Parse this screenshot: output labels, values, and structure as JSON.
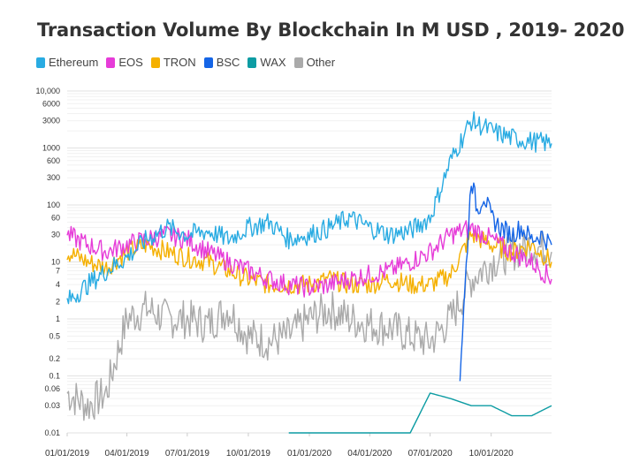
{
  "title": "Transaction Volume By Blockchain In M USD , 2019- 2020",
  "legend": [
    {
      "name": "Ethereum",
      "color": "#29abe2"
    },
    {
      "name": "EOS",
      "color": "#e63cd8"
    },
    {
      "name": "TRON",
      "color": "#f5b000"
    },
    {
      "name": "BSC",
      "color": "#1565e6"
    },
    {
      "name": "WAX",
      "color": "#0d9ca3"
    },
    {
      "name": "Other",
      "color": "#aaaaaa"
    }
  ],
  "chart_data": {
    "type": "line",
    "title": "Transaction Volume By Blockchain In M USD , 2019- 2020",
    "xlabel": "",
    "ylabel": "",
    "yscale": "log",
    "ylim": [
      0.01,
      10000
    ],
    "y_ticks": [
      {
        "value": 0.01,
        "label": "0.01"
      },
      {
        "value": 0.03,
        "label": "0.03"
      },
      {
        "value": 0.06,
        "label": "0.06"
      },
      {
        "value": 0.1,
        "label": "0.1"
      },
      {
        "value": 0.2,
        "label": "0.2"
      },
      {
        "value": 0.5,
        "label": "0.5"
      },
      {
        "value": 1,
        "label": "1"
      },
      {
        "value": 2,
        "label": "2"
      },
      {
        "value": 4,
        "label": "4"
      },
      {
        "value": 7,
        "label": "7"
      },
      {
        "value": 10,
        "label": "10"
      },
      {
        "value": 30,
        "label": "30"
      },
      {
        "value": 60,
        "label": "60"
      },
      {
        "value": 100,
        "label": "100"
      },
      {
        "value": 300,
        "label": "300"
      },
      {
        "value": 600,
        "label": "600"
      },
      {
        "value": 1000,
        "label": "1000"
      },
      {
        "value": 3000,
        "label": "3000"
      },
      {
        "value": 6000,
        "label": "6000"
      },
      {
        "value": 10000,
        "label": "10,000"
      }
    ],
    "x_ticks": [
      "01/01/2019",
      "04/01/2019",
      "07/01/2019",
      "10/01/2019",
      "01/01/2020",
      "04/01/2020",
      "07/01/2020",
      "10/01/2020"
    ],
    "x_range": [
      "2019-01-01",
      "2020-12-31"
    ],
    "grid": true,
    "legend_position": "top-left",
    "series": [
      {
        "name": "Ethereum",
        "color": "#29abe2",
        "x": [
          "2019-01-01",
          "2019-02-01",
          "2019-03-01",
          "2019-04-01",
          "2019-05-01",
          "2019-06-01",
          "2019-07-01",
          "2019-08-01",
          "2019-09-01",
          "2019-10-01",
          "2019-11-01",
          "2019-12-01",
          "2020-01-01",
          "2020-02-01",
          "2020-03-01",
          "2020-04-01",
          "2020-05-01",
          "2020-06-01",
          "2020-07-01",
          "2020-08-01",
          "2020-09-01",
          "2020-10-01",
          "2020-11-01",
          "2020-12-01",
          "2020-12-31"
        ],
        "values": [
          2,
          4,
          7,
          12,
          25,
          40,
          30,
          35,
          25,
          40,
          50,
          25,
          30,
          40,
          60,
          40,
          30,
          35,
          60,
          600,
          3000,
          2000,
          1500,
          1300,
          1200
        ]
      },
      {
        "name": "EOS",
        "color": "#e63cd8",
        "x": [
          "2019-01-01",
          "2019-02-01",
          "2019-03-01",
          "2019-04-01",
          "2019-05-01",
          "2019-06-01",
          "2019-07-01",
          "2019-08-01",
          "2019-09-01",
          "2019-10-01",
          "2019-11-01",
          "2019-12-01",
          "2020-01-01",
          "2020-02-01",
          "2020-03-01",
          "2020-04-01",
          "2020-05-01",
          "2020-06-01",
          "2020-07-01",
          "2020-08-01",
          "2020-09-01",
          "2020-10-01",
          "2020-11-01",
          "2020-12-01",
          "2020-12-31"
        ],
        "values": [
          30,
          20,
          15,
          20,
          25,
          30,
          25,
          15,
          10,
          7,
          5,
          4,
          3.5,
          4,
          5,
          6,
          7,
          10,
          15,
          30,
          40,
          25,
          15,
          10,
          5
        ]
      },
      {
        "name": "TRON",
        "color": "#f5b000",
        "x": [
          "2019-01-01",
          "2019-02-01",
          "2019-03-01",
          "2019-04-01",
          "2019-05-01",
          "2019-06-01",
          "2019-07-01",
          "2019-08-01",
          "2019-09-01",
          "2019-10-01",
          "2019-11-01",
          "2019-12-01",
          "2020-01-01",
          "2020-02-01",
          "2020-03-01",
          "2020-04-01",
          "2020-05-01",
          "2020-06-01",
          "2020-07-01",
          "2020-08-01",
          "2020-09-01",
          "2020-10-01",
          "2020-11-01",
          "2020-12-01",
          "2020-12-31"
        ],
        "values": [
          15,
          10,
          8,
          15,
          20,
          15,
          12,
          10,
          7,
          5,
          4,
          4,
          4,
          5,
          4,
          4,
          5,
          4,
          4,
          6,
          30,
          20,
          15,
          20,
          10
        ]
      },
      {
        "name": "BSC",
        "color": "#1565e6",
        "x": [
          "2020-08-15",
          "2020-09-01",
          "2020-09-10",
          "2020-09-20",
          "2020-10-01",
          "2020-10-15",
          "2020-11-01",
          "2020-11-15",
          "2020-12-01",
          "2020-12-15",
          "2020-12-31"
        ],
        "values": [
          0.1,
          300,
          80,
          150,
          60,
          40,
          30,
          40,
          25,
          30,
          20
        ]
      },
      {
        "name": "WAX",
        "color": "#0d9ca3",
        "x": [
          "2019-12-01",
          "2020-01-01",
          "2020-02-01",
          "2020-03-01",
          "2020-04-01",
          "2020-05-01",
          "2020-06-01",
          "2020-07-01",
          "2020-08-01",
          "2020-09-01",
          "2020-10-01",
          "2020-11-01",
          "2020-12-01",
          "2020-12-31"
        ],
        "values": [
          0.01,
          0.01,
          0.01,
          0.01,
          0.01,
          0.01,
          0.01,
          0.05,
          0.04,
          0.03,
          0.03,
          0.02,
          0.02,
          0.03
        ]
      },
      {
        "name": "Other",
        "color": "#aaaaaa",
        "x": [
          "2019-01-01",
          "2019-02-01",
          "2019-03-01",
          "2019-04-01",
          "2019-05-01",
          "2019-06-01",
          "2019-07-01",
          "2019-08-01",
          "2019-09-01",
          "2019-10-01",
          "2019-11-01",
          "2019-12-01",
          "2020-01-01",
          "2020-02-01",
          "2020-03-01",
          "2020-04-01",
          "2020-05-01",
          "2020-06-01",
          "2020-07-01",
          "2020-08-01",
          "2020-09-01",
          "2020-10-01",
          "2020-11-01",
          "2020-12-01",
          "2020-12-31"
        ],
        "values": [
          0.05,
          0.03,
          0.05,
          1,
          1.5,
          1,
          1,
          0.8,
          1.5,
          0.5,
          0.4,
          0.5,
          1,
          1.5,
          1,
          0.8,
          0.7,
          0.5,
          0.4,
          1,
          5,
          10,
          15,
          20,
          15
        ]
      }
    ]
  }
}
